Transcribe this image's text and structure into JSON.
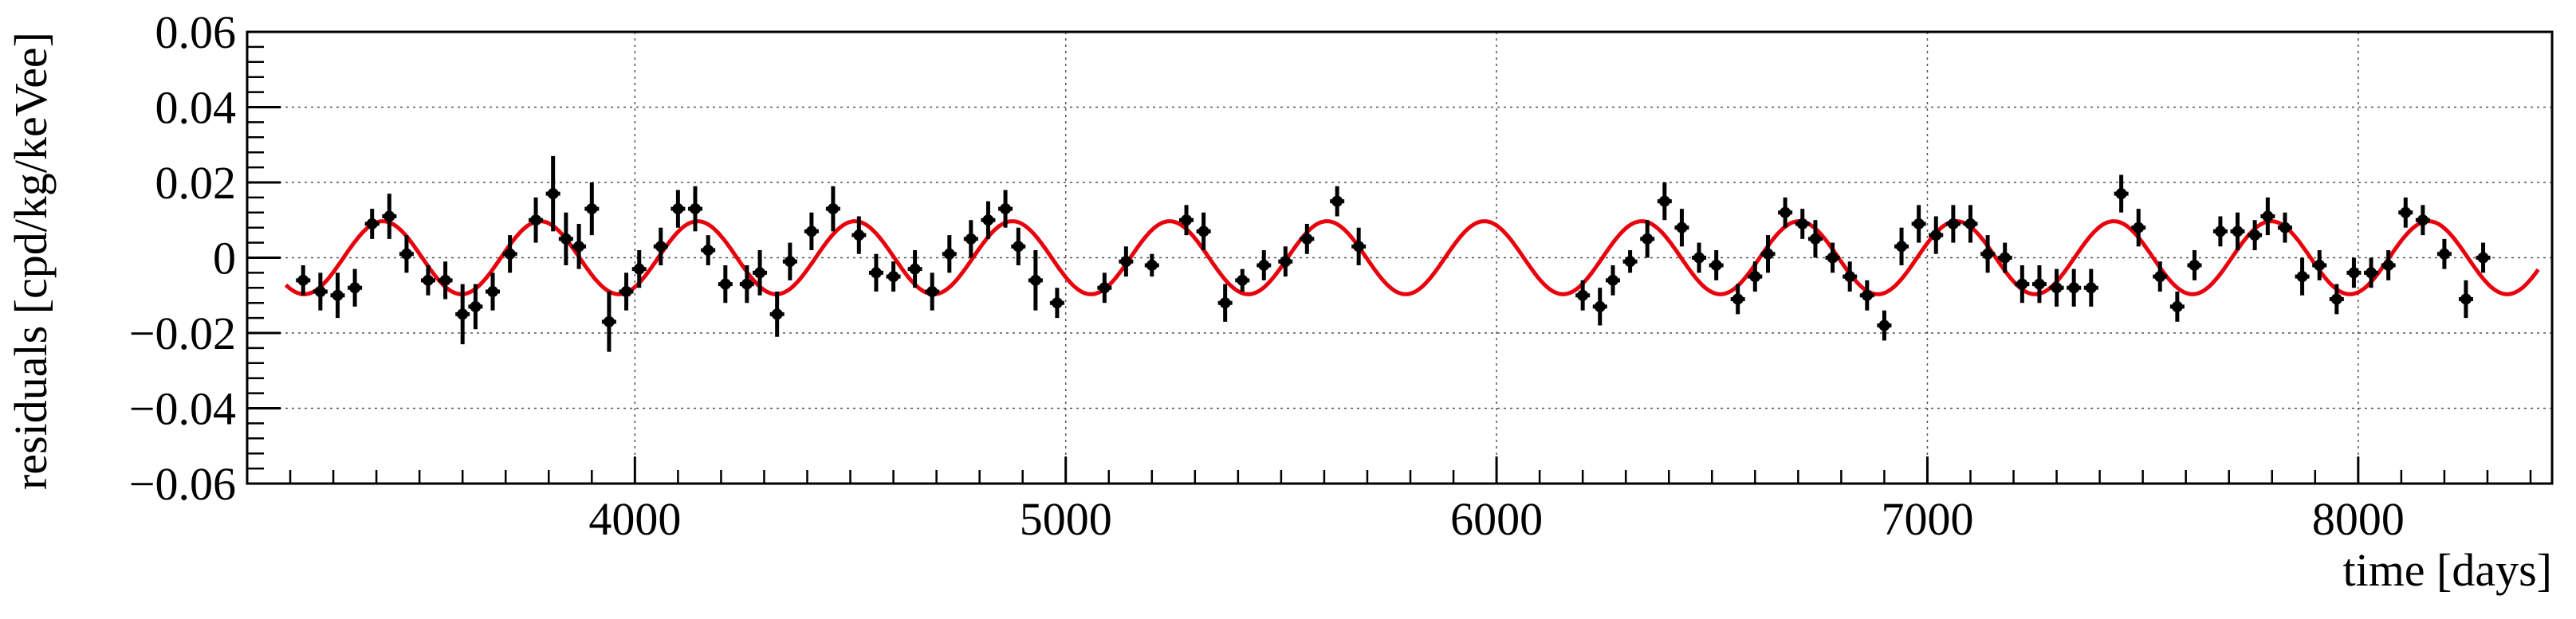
{
  "chart_data": {
    "type": "scatter",
    "title": "",
    "xlabel": "time [days]",
    "ylabel": "residuals [cpd/kg/keVee]",
    "xlim": [
      3100,
      8450
    ],
    "ylim": [
      -0.06,
      0.06
    ],
    "x_ticks": [
      4000,
      5000,
      6000,
      7000,
      8000
    ],
    "x_tick_labels": [
      "4000",
      "5000",
      "6000",
      "7000",
      "8000"
    ],
    "y_ticks": [
      -0.06,
      -0.04,
      -0.02,
      0,
      0.02,
      0.04,
      0.06
    ],
    "y_tick_labels": [
      "−0.06",
      "−0.04",
      "−0.02",
      "0",
      "0.02",
      "0.04",
      "0.06"
    ],
    "grid": true,
    "colors": {
      "points": "#000000",
      "fit": "#e8000b",
      "grid": "#555555"
    },
    "fit": {
      "type": "cosine",
      "amplitude": 0.0097,
      "period": 365.25,
      "phase_day": 3415,
      "x_range": [
        3190,
        8420
      ]
    },
    "series": [
      {
        "x": [
          3230,
          3270,
          3310,
          3350,
          3390,
          3430,
          3470,
          3520,
          3560,
          3600,
          3630,
          3670,
          3710,
          3770,
          3810,
          3840,
          3870,
          3900,
          3940,
          3980,
          4010,
          4060,
          4100,
          4140,
          4170,
          4210,
          4260,
          4290,
          4330,
          4360,
          4410,
          4460,
          4520,
          4560,
          4600,
          4650,
          4690,
          4730,
          4780,
          4820,
          4860,
          4890,
          4930,
          4980,
          5090,
          5140,
          5200,
          5280,
          5320,
          5370,
          5410,
          5460,
          5510,
          5560,
          5630,
          5680,
          6200,
          6240,
          6270,
          6310,
          6350,
          6390,
          6430,
          6470,
          6510,
          6560,
          6600,
          6630,
          6670,
          6710,
          6740,
          6780,
          6820,
          6860,
          6900,
          6940,
          6980,
          7020,
          7060,
          7100,
          7140,
          7180,
          7220,
          7260,
          7300,
          7340,
          7380,
          7450,
          7490,
          7540,
          7580,
          7620,
          7680,
          7720,
          7760,
          7790,
          7830,
          7870,
          7910,
          7950,
          7990,
          8030,
          8070,
          8110,
          8150,
          8200,
          8250,
          8290
        ],
        "y": [
          -0.006,
          -0.009,
          -0.01,
          -0.008,
          0.009,
          0.011,
          0.001,
          -0.006,
          -0.006,
          -0.015,
          -0.013,
          -0.009,
          0.001,
          0.01,
          0.017,
          0.005,
          0.003,
          0.013,
          -0.017,
          -0.009,
          -0.003,
          0.003,
          0.013,
          0.013,
          0.002,
          -0.007,
          -0.007,
          -0.004,
          -0.015,
          -0.001,
          0.007,
          0.013,
          0.006,
          -0.004,
          -0.005,
          -0.003,
          -0.009,
          0.001,
          0.005,
          0.01,
          0.013,
          0.003,
          -0.006,
          -0.012,
          -0.008,
          -0.001,
          -0.002,
          0.01,
          0.007,
          -0.012,
          -0.006,
          -0.002,
          -0.001,
          0.005,
          0.015,
          0.003,
          -0.01,
          -0.013,
          -0.006,
          -0.001,
          0.005,
          0.015,
          0.008,
          0.0,
          -0.002,
          -0.011,
          -0.005,
          0.001,
          0.012,
          0.009,
          0.005,
          0.0,
          -0.005,
          -0.01,
          -0.018,
          0.003,
          0.009,
          0.006,
          0.009,
          0.009,
          0.001,
          0.0,
          -0.007,
          -0.007,
          -0.008,
          -0.008,
          -0.008,
          0.017,
          0.008,
          -0.005,
          -0.013,
          -0.002,
          0.007,
          0.007,
          0.006,
          0.011,
          0.008,
          -0.005,
          -0.002,
          -0.011,
          -0.004,
          -0.004,
          -0.002,
          0.012,
          0.01,
          0.001,
          -0.011,
          0.0
        ],
        "err": [
          0.004,
          0.005,
          0.006,
          0.005,
          0.004,
          0.006,
          0.005,
          0.004,
          0.005,
          0.008,
          0.006,
          0.005,
          0.005,
          0.006,
          0.01,
          0.007,
          0.006,
          0.007,
          0.008,
          0.005,
          0.005,
          0.005,
          0.005,
          0.006,
          0.004,
          0.005,
          0.005,
          0.006,
          0.006,
          0.005,
          0.005,
          0.006,
          0.005,
          0.005,
          0.004,
          0.005,
          0.005,
          0.005,
          0.005,
          0.005,
          0.005,
          0.005,
          0.008,
          0.004,
          0.004,
          0.004,
          0.003,
          0.004,
          0.005,
          0.005,
          0.003,
          0.004,
          0.004,
          0.004,
          0.004,
          0.005,
          0.004,
          0.005,
          0.004,
          0.003,
          0.005,
          0.005,
          0.005,
          0.004,
          0.004,
          0.004,
          0.004,
          0.005,
          0.004,
          0.004,
          0.005,
          0.004,
          0.004,
          0.004,
          0.004,
          0.005,
          0.005,
          0.005,
          0.005,
          0.005,
          0.005,
          0.004,
          0.005,
          0.005,
          0.005,
          0.005,
          0.005,
          0.005,
          0.005,
          0.004,
          0.004,
          0.004,
          0.004,
          0.005,
          0.004,
          0.005,
          0.004,
          0.005,
          0.004,
          0.004,
          0.004,
          0.004,
          0.004,
          0.004,
          0.004,
          0.004,
          0.005,
          0.004
        ]
      }
    ]
  }
}
